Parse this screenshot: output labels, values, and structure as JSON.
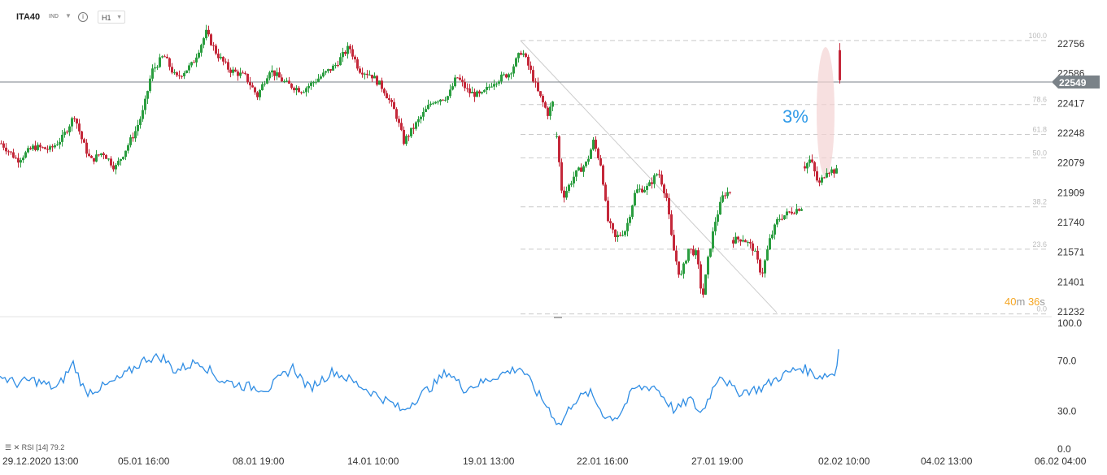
{
  "header": {
    "symbol": "ITA40",
    "instrument_type": "IND",
    "timeframe": "H1"
  },
  "price_axis": {
    "ticks": [
      "22756",
      "22586",
      "22417",
      "22248",
      "22079",
      "21909",
      "21740",
      "21571",
      "21401",
      "21232"
    ],
    "current_price": "22549"
  },
  "fibonacci_levels": [
    {
      "label": "100.0",
      "price": 22775
    },
    {
      "label": "78.6",
      "price": 22411
    },
    {
      "label": "61.8",
      "price": 22241
    },
    {
      "label": "50.0",
      "price": 22108
    },
    {
      "label": "38.2",
      "price": 21829
    },
    {
      "label": "23.6",
      "price": 21588
    },
    {
      "label": "0.0",
      "price": 21220
    }
  ],
  "annotation": {
    "text": "3%"
  },
  "countdown": {
    "minutes": "40",
    "m_unit": "m",
    "seconds": "36",
    "s_unit": "s"
  },
  "time_axis": {
    "labels": [
      "29.12.2020  13:00",
      "05.01  16:00",
      "08.01  19:00",
      "14.01  10:00",
      "19.01  13:00",
      "22.01  16:00",
      "27.01  19:00",
      "02.02  10:00",
      "04.02  13:00",
      "06.02  04:00"
    ]
  },
  "rsi_panel": {
    "label": "RSI [14]",
    "value": "79.2",
    "axis_ticks": [
      "100.0",
      "70.0",
      "30.0",
      "0.0"
    ]
  },
  "colors": {
    "up": "#2a9d3f",
    "down": "#c4283a",
    "rsi_line": "#2f8de4",
    "price_tag": "#7a8288"
  },
  "chart_data": [
    {
      "type": "candlestick",
      "title": "ITA40",
      "timeframe": "H1",
      "ylim": [
        21200,
        22900
      ],
      "close_path": [
        {
          "x": 0,
          "close": 22190
        },
        {
          "x": 20,
          "close": 22095
        },
        {
          "x": 40,
          "close": 22170
        },
        {
          "x": 60,
          "close": 22155
        },
        {
          "x": 75,
          "close": 22220
        },
        {
          "x": 90,
          "close": 22350
        },
        {
          "x": 100,
          "close": 22200
        },
        {
          "x": 110,
          "close": 22090
        },
        {
          "x": 125,
          "close": 22140
        },
        {
          "x": 140,
          "close": 22050
        },
        {
          "x": 150,
          "close": 22130
        },
        {
          "x": 165,
          "close": 22260
        },
        {
          "x": 175,
          "close": 22380
        },
        {
          "x": 185,
          "close": 22600
        },
        {
          "x": 200,
          "close": 22690
        },
        {
          "x": 215,
          "close": 22560
        },
        {
          "x": 235,
          "close": 22640
        },
        {
          "x": 252,
          "close": 22820
        },
        {
          "x": 265,
          "close": 22700
        },
        {
          "x": 280,
          "close": 22610
        },
        {
          "x": 300,
          "close": 22570
        },
        {
          "x": 315,
          "close": 22460
        },
        {
          "x": 330,
          "close": 22610
        },
        {
          "x": 350,
          "close": 22530
        },
        {
          "x": 370,
          "close": 22490
        },
        {
          "x": 390,
          "close": 22560
        },
        {
          "x": 410,
          "close": 22630
        },
        {
          "x": 428,
          "close": 22740
        },
        {
          "x": 440,
          "close": 22610
        },
        {
          "x": 455,
          "close": 22580
        },
        {
          "x": 470,
          "close": 22500
        },
        {
          "x": 485,
          "close": 22360
        },
        {
          "x": 495,
          "close": 22200
        },
        {
          "x": 510,
          "close": 22300
        },
        {
          "x": 530,
          "close": 22430
        },
        {
          "x": 550,
          "close": 22460
        },
        {
          "x": 560,
          "close": 22570
        },
        {
          "x": 575,
          "close": 22480
        },
        {
          "x": 590,
          "close": 22460
        },
        {
          "x": 605,
          "close": 22540
        },
        {
          "x": 625,
          "close": 22590
        },
        {
          "x": 640,
          "close": 22720
        },
        {
          "x": 650,
          "close": 22610
        },
        {
          "x": 660,
          "close": 22480
        },
        {
          "x": 672,
          "close": 22360
        },
        {
          "x": 678,
          "close": 22420
        }
      ],
      "close_path_2": [
        {
          "x": 683,
          "close": 22230
        },
        {
          "x": 690,
          "close": 21880
        },
        {
          "x": 705,
          "close": 22010
        },
        {
          "x": 720,
          "close": 22080
        },
        {
          "x": 728,
          "close": 22200
        },
        {
          "x": 738,
          "close": 22060
        },
        {
          "x": 745,
          "close": 21760
        },
        {
          "x": 755,
          "close": 21650
        },
        {
          "x": 768,
          "close": 21700
        },
        {
          "x": 780,
          "close": 21920
        },
        {
          "x": 795,
          "close": 21940
        },
        {
          "x": 808,
          "close": 22030
        },
        {
          "x": 818,
          "close": 21880
        },
        {
          "x": 825,
          "close": 21620
        },
        {
          "x": 835,
          "close": 21420
        },
        {
          "x": 845,
          "close": 21590
        },
        {
          "x": 855,
          "close": 21560
        },
        {
          "x": 862,
          "close": 21300
        },
        {
          "x": 870,
          "close": 21560
        },
        {
          "x": 878,
          "close": 21750
        },
        {
          "x": 888,
          "close": 21900
        },
        {
          "x": 897,
          "close": 21920
        }
      ],
      "close_path_3": [
        {
          "x": 900,
          "close": 21640
        },
        {
          "x": 912,
          "close": 21650
        },
        {
          "x": 925,
          "close": 21590
        },
        {
          "x": 935,
          "close": 21440
        },
        {
          "x": 945,
          "close": 21640
        },
        {
          "x": 955,
          "close": 21760
        },
        {
          "x": 970,
          "close": 21800
        },
        {
          "x": 985,
          "close": 21830
        }
      ],
      "close_path_4": [
        {
          "x": 988,
          "close": 22060
        },
        {
          "x": 995,
          "close": 22100
        },
        {
          "x": 1005,
          "close": 21950
        },
        {
          "x": 1015,
          "close": 22040
        },
        {
          "x": 1028,
          "close": 22030
        }
      ],
      "last_candle": {
        "x": 1031,
        "open": 22720,
        "close": 22549,
        "high": 22760,
        "low": 22530
      },
      "current_price": 22549,
      "annotation_move_pct": 3,
      "rsi": {
        "period": 14,
        "last_value": 79.2,
        "ylim": [
          0,
          100
        ],
        "path": [
          {
            "x": 0,
            "rsi": 58
          },
          {
            "x": 20,
            "rsi": 52
          },
          {
            "x": 40,
            "rsi": 55
          },
          {
            "x": 70,
            "rsi": 48
          },
          {
            "x": 90,
            "rsi": 68
          },
          {
            "x": 105,
            "rsi": 45
          },
          {
            "x": 130,
            "rsi": 50
          },
          {
            "x": 150,
            "rsi": 57
          },
          {
            "x": 180,
            "rsi": 72
          },
          {
            "x": 200,
            "rsi": 73
          },
          {
            "x": 215,
            "rsi": 62
          },
          {
            "x": 245,
            "rsi": 70
          },
          {
            "x": 270,
            "rsi": 55
          },
          {
            "x": 300,
            "rsi": 50
          },
          {
            "x": 330,
            "rsi": 48
          },
          {
            "x": 360,
            "rsi": 65
          },
          {
            "x": 380,
            "rsi": 48
          },
          {
            "x": 410,
            "rsi": 62
          },
          {
            "x": 430,
            "rsi": 55
          },
          {
            "x": 460,
            "rsi": 44
          },
          {
            "x": 485,
            "rsi": 35
          },
          {
            "x": 495,
            "rsi": 30
          },
          {
            "x": 515,
            "rsi": 42
          },
          {
            "x": 535,
            "rsi": 52
          },
          {
            "x": 550,
            "rsi": 62
          },
          {
            "x": 570,
            "rsi": 48
          },
          {
            "x": 590,
            "rsi": 52
          },
          {
            "x": 610,
            "rsi": 58
          },
          {
            "x": 640,
            "rsi": 65
          },
          {
            "x": 660,
            "rsi": 45
          },
          {
            "x": 675,
            "rsi": 32
          },
          {
            "x": 688,
            "rsi": 18
          },
          {
            "x": 705,
            "rsi": 38
          },
          {
            "x": 725,
            "rsi": 45
          },
          {
            "x": 745,
            "rsi": 25
          },
          {
            "x": 760,
            "rsi": 26
          },
          {
            "x": 780,
            "rsi": 48
          },
          {
            "x": 805,
            "rsi": 50
          },
          {
            "x": 830,
            "rsi": 30
          },
          {
            "x": 848,
            "rsi": 40
          },
          {
            "x": 862,
            "rsi": 28
          },
          {
            "x": 885,
            "rsi": 60
          },
          {
            "x": 905,
            "rsi": 45
          },
          {
            "x": 935,
            "rsi": 48
          },
          {
            "x": 960,
            "rsi": 58
          },
          {
            "x": 985,
            "rsi": 65
          },
          {
            "x": 1005,
            "rsi": 58
          },
          {
            "x": 1028,
            "rsi": 60
          },
          {
            "x": 1031,
            "rsi": 79.2
          }
        ]
      }
    }
  ]
}
